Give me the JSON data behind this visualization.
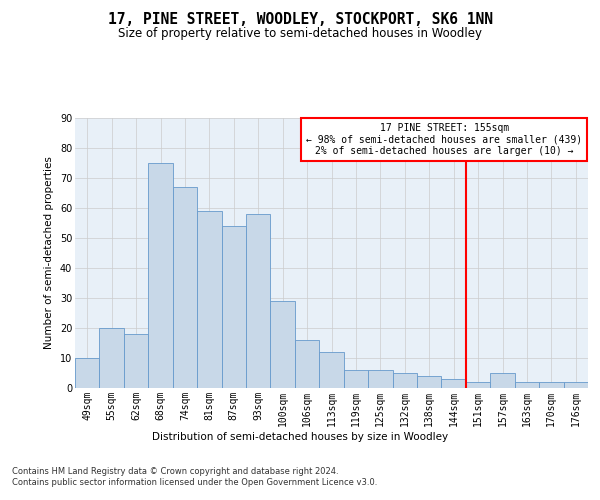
{
  "title": "17, PINE STREET, WOODLEY, STOCKPORT, SK6 1NN",
  "subtitle": "Size of property relative to semi-detached houses in Woodley",
  "xlabel_bottom": "Distribution of semi-detached houses by size in Woodley",
  "ylabel": "Number of semi-detached properties",
  "categories": [
    "49sqm",
    "55sqm",
    "62sqm",
    "68sqm",
    "74sqm",
    "81sqm",
    "87sqm",
    "93sqm",
    "100sqm",
    "106sqm",
    "113sqm",
    "119sqm",
    "125sqm",
    "132sqm",
    "138sqm",
    "144sqm",
    "151sqm",
    "157sqm",
    "163sqm",
    "170sqm",
    "176sqm"
  ],
  "values": [
    10,
    20,
    18,
    75,
    67,
    59,
    54,
    58,
    29,
    16,
    12,
    6,
    6,
    5,
    4,
    3,
    2,
    5,
    2,
    2,
    2
  ],
  "bar_color": "#c8d8e8",
  "bar_edge_color": "#6699cc",
  "grid_color": "#cccccc",
  "background_color": "#e8f0f8",
  "vline_x_index": 16,
  "vline_color": "red",
  "annotation_text": "17 PINE STREET: 155sqm\n← 98% of semi-detached houses are smaller (439)\n2% of semi-detached houses are larger (10) →",
  "annotation_box_color": "red",
  "ylim": [
    0,
    90
  ],
  "yticks": [
    0,
    10,
    20,
    30,
    40,
    50,
    60,
    70,
    80,
    90
  ],
  "footnote": "Contains HM Land Registry data © Crown copyright and database right 2024.\nContains public sector information licensed under the Open Government Licence v3.0.",
  "title_fontsize": 10.5,
  "subtitle_fontsize": 8.5,
  "axis_label_fontsize": 7.5,
  "tick_fontsize": 7,
  "footnote_fontsize": 6,
  "annotation_fontsize": 7
}
